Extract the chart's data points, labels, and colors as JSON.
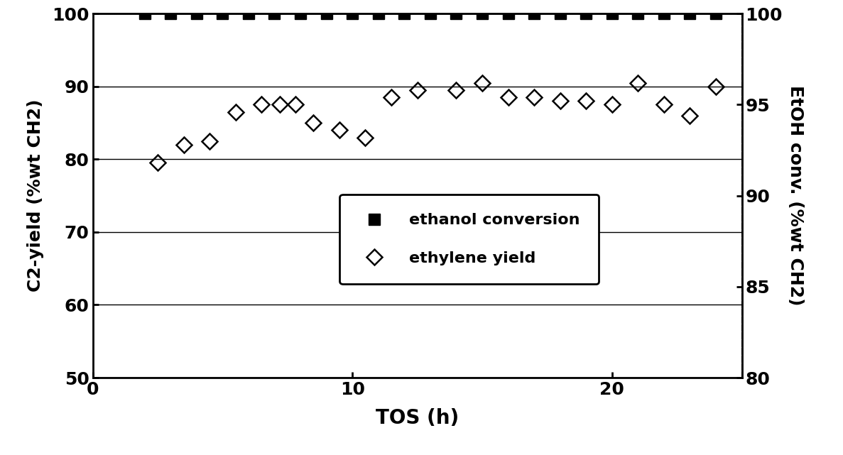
{
  "ethanol_conversion_x": [
    2,
    3,
    4,
    5,
    6,
    7,
    8,
    9,
    10,
    11,
    12,
    13,
    14,
    15,
    16,
    17,
    18,
    19,
    20,
    21,
    22,
    23,
    24
  ],
  "ethanol_conversion_y": [
    100,
    100,
    100,
    100,
    100,
    100,
    100,
    100,
    100,
    100,
    100,
    100,
    100,
    100,
    100,
    100,
    100,
    100,
    100,
    100,
    100,
    100,
    100
  ],
  "ethylene_yield_x": [
    2.5,
    3.5,
    4.5,
    5.5,
    6.5,
    7.2,
    7.8,
    8.5,
    9.5,
    10.5,
    11.5,
    12.5,
    14.0,
    15.0,
    16.0,
    17.0,
    18.0,
    19.0,
    20.0,
    21.0,
    22.0,
    23.0,
    24.0
  ],
  "ethylene_yield_y": [
    79.5,
    82.0,
    82.5,
    86.5,
    87.5,
    87.5,
    87.5,
    85.0,
    84.0,
    83.0,
    88.5,
    89.5,
    89.5,
    90.5,
    88.5,
    88.5,
    88.0,
    88.0,
    87.5,
    90.5,
    87.5,
    86.0,
    90.0
  ],
  "xlim": [
    0,
    25
  ],
  "ylim_left": [
    50,
    100
  ],
  "ylim_right": [
    80,
    100
  ],
  "xlabel": "TOS (h)",
  "ylabel_left": "C2-yield (%wt CH2)",
  "ylabel_right": "EtOH conv. (%wt CH2)",
  "legend_ethanol": "ethanol conversion",
  "legend_ethylene": "ethylene yield",
  "xticks": [
    0,
    10,
    20
  ],
  "yticks_left": [
    50,
    60,
    70,
    80,
    90,
    100
  ],
  "yticks_right": [
    80,
    85,
    90,
    95,
    100
  ],
  "background_color": "#ffffff"
}
